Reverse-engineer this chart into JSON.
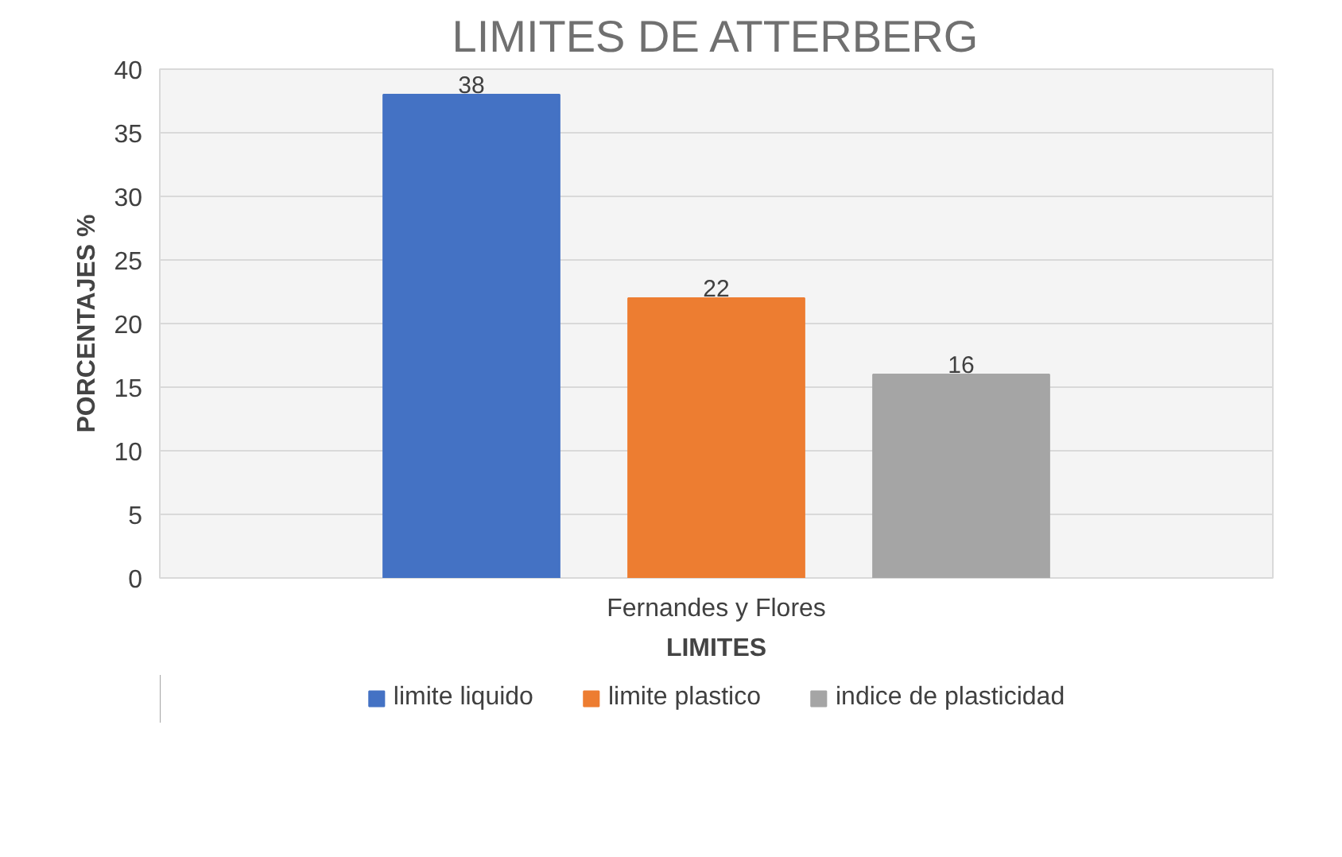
{
  "chart_data": {
    "type": "bar",
    "title": "LIMITES DE ATTERBERG",
    "xlabel": "LIMITES",
    "ylabel": "PORCENTAJES %",
    "categories": [
      "Fernandes y Flores"
    ],
    "series": [
      {
        "name": "limite liquido",
        "color": "#4472c4",
        "values": [
          38
        ]
      },
      {
        "name": "limite plastico",
        "color": "#ed7d31",
        "values": [
          22
        ]
      },
      {
        "name": "indice de plasticidad",
        "color": "#a5a5a5",
        "values": [
          16
        ]
      }
    ],
    "ylim": [
      0,
      40
    ],
    "yticks": [
      0,
      5,
      10,
      15,
      20,
      25,
      30,
      35,
      40
    ],
    "grid": "y",
    "legend": "bottom",
    "data_labels": true
  }
}
